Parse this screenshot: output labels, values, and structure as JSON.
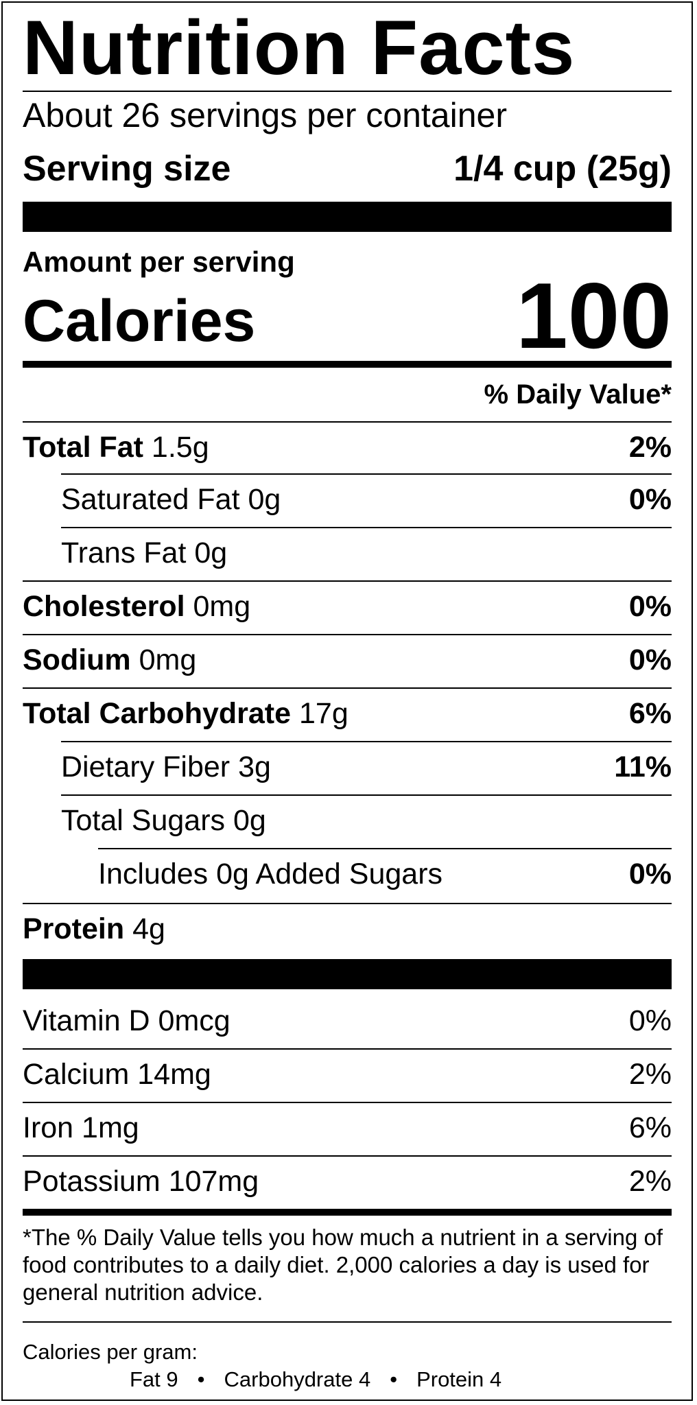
{
  "title": "Nutrition Facts",
  "servings_per_container": "About 26 servings per container",
  "serving_size": {
    "label": "Serving size",
    "value": "1/4 cup (25g)"
  },
  "amount_per_serving": "Amount per serving",
  "calories": {
    "label": "Calories",
    "value": "100"
  },
  "daily_value_header": "% Daily Value*",
  "nutrients": [
    {
      "name": "Total Fat",
      "amount": "1.5g",
      "dv": "2%",
      "bold": true
    },
    {
      "name": "Saturated Fat",
      "amount": "0g",
      "dv": "0%",
      "bold": false
    },
    {
      "name": "Trans Fat",
      "amount": "0g",
      "dv": "",
      "bold": false
    },
    {
      "name": "Cholesterol",
      "amount": "0mg",
      "dv": "0%",
      "bold": true
    },
    {
      "name": "Sodium",
      "amount": "0mg",
      "dv": "0%",
      "bold": true
    },
    {
      "name": "Total Carbohydrate",
      "amount": "17g",
      "dv": "6%",
      "bold": true
    },
    {
      "name": "Dietary Fiber",
      "amount": "3g",
      "dv": "11%",
      "bold": false
    },
    {
      "name": "Total Sugars",
      "amount": "0g",
      "dv": "",
      "bold": false
    },
    {
      "name": "Includes 0g Added Sugars",
      "amount": "",
      "dv": "0%",
      "bold": false
    },
    {
      "name": "Protein",
      "amount": "4g",
      "dv": "",
      "bold": true
    }
  ],
  "vitamins": [
    {
      "name": "Vitamin D 0mcg",
      "dv": "0%"
    },
    {
      "name": "Calcium 14mg",
      "dv": "2%"
    },
    {
      "name": "Iron 1mg",
      "dv": "6%"
    },
    {
      "name": "Potassium 107mg",
      "dv": "2%"
    }
  ],
  "footnote": "*The % Daily Value tells you how much a nutrient in a serving of food contributes to a daily diet. 2,000 calories a day is used for general nutrition advice.",
  "calories_per_gram": {
    "label": "Calories per gram:",
    "fat": "Fat 9",
    "carbohydrate": "Carbohydrate 4",
    "protein": "Protein 4",
    "separator": "•"
  }
}
